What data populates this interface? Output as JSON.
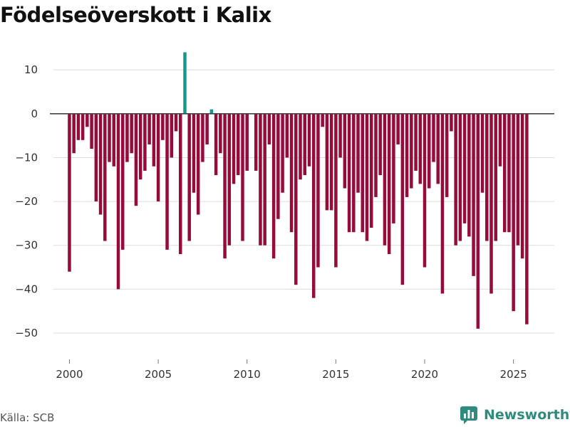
{
  "title": "Födelseöverskott i Kalix",
  "source": "Källa: SCB",
  "brand": "Newsworthy",
  "colors": {
    "positive": "#139a8e",
    "negative": "#960b3a",
    "grid": "#dddddd",
    "zero": "#444444",
    "brand": "#2e8b7e"
  },
  "chart_data": {
    "type": "bar",
    "title": "Födelseöverskott i Kalix",
    "xlabel": "",
    "ylabel": "",
    "frequency": "quarterly",
    "ylim": [
      -56,
      17
    ],
    "yticks": [
      10,
      0,
      -10,
      -20,
      -30,
      -40,
      -50
    ],
    "xlim": [
      1999.1,
      2027.3
    ],
    "xticks": [
      2000,
      2005,
      2010,
      2015,
      2020,
      2025
    ],
    "grid": true,
    "x": [
      2000.0,
      2000.25,
      2000.5,
      2000.75,
      2001.0,
      2001.25,
      2001.5,
      2001.75,
      2002.0,
      2002.25,
      2002.5,
      2002.75,
      2003.0,
      2003.25,
      2003.5,
      2003.75,
      2004.0,
      2004.25,
      2004.5,
      2004.75,
      2005.0,
      2005.25,
      2005.5,
      2005.75,
      2006.0,
      2006.25,
      2006.5,
      2006.75,
      2007.0,
      2007.25,
      2007.5,
      2007.75,
      2008.0,
      2008.25,
      2008.5,
      2008.75,
      2009.0,
      2009.25,
      2009.5,
      2009.75,
      2010.0,
      2010.25,
      2010.5,
      2010.75,
      2011.0,
      2011.25,
      2011.5,
      2011.75,
      2012.0,
      2012.25,
      2012.5,
      2012.75,
      2013.0,
      2013.25,
      2013.5,
      2013.75,
      2014.0,
      2014.25,
      2014.5,
      2014.75,
      2015.0,
      2015.25,
      2015.5,
      2015.75,
      2016.0,
      2016.25,
      2016.5,
      2016.75,
      2017.0,
      2017.25,
      2017.5,
      2017.75,
      2018.0,
      2018.25,
      2018.5,
      2018.75,
      2019.0,
      2019.25,
      2019.5,
      2019.75,
      2020.0,
      2020.25,
      2020.5,
      2020.75,
      2021.0,
      2021.25,
      2021.5,
      2021.75,
      2022.0,
      2022.25,
      2022.5,
      2022.75,
      2023.0,
      2023.25,
      2023.5,
      2023.75,
      2024.0,
      2024.25,
      2024.5,
      2024.75,
      2025.0,
      2025.25,
      2025.5,
      2025.75
    ],
    "values": [
      -36,
      -9,
      -6,
      -6,
      -3,
      -8,
      -20,
      -23,
      -29,
      -11,
      -12,
      -40,
      -31,
      -11,
      -9,
      -21,
      -15,
      -13,
      -7,
      -12,
      -20,
      -6,
      -31,
      -10,
      -4,
      -32,
      14,
      -29,
      -18,
      -23,
      -11,
      -7,
      1,
      -14,
      -9,
      -33,
      -30,
      -16,
      -14,
      -29,
      -13,
      0,
      -13,
      -30,
      -30,
      -7,
      -33,
      -24,
      -18,
      -10,
      -27,
      -39,
      -15,
      -14,
      -12,
      -42,
      -35,
      -3,
      -22,
      -22,
      -35,
      -10,
      -17,
      -27,
      -27,
      -18,
      -27,
      -29,
      -26,
      -19,
      -14,
      -30,
      -32,
      -25,
      -7,
      -39,
      -19,
      -17,
      -13,
      -16,
      -35,
      -17,
      -11,
      -16,
      -41,
      -19,
      -4,
      -30,
      -29,
      -25,
      -28,
      -37,
      -49,
      -18,
      -29,
      -41,
      -29,
      -12,
      -27,
      -27,
      -45,
      -30,
      -33,
      -48
    ]
  }
}
